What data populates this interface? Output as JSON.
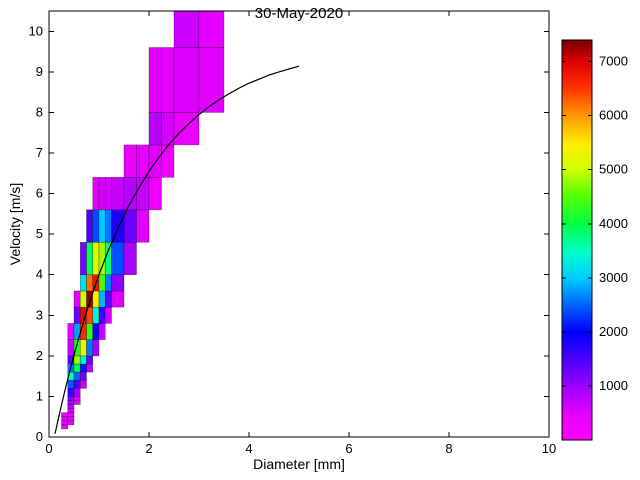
{
  "chart_data": {
    "type": "heatmap",
    "title": "30-May-2020",
    "xlabel": "Diameter [mm]",
    "ylabel": "Velocity [m/s]",
    "xlim": [
      0,
      10
    ],
    "ylim": [
      0,
      10.5
    ],
    "xticks": [
      0,
      2,
      4,
      6,
      8,
      10
    ],
    "yticks": [
      0,
      1,
      2,
      3,
      4,
      5,
      6,
      7,
      8,
      9,
      10
    ],
    "grid": false,
    "legend": "none",
    "colorbar": {
      "min": 0,
      "max": 7400,
      "ticks": [
        1000,
        2000,
        3000,
        4000,
        5000,
        6000,
        7000
      ]
    },
    "colormap": [
      [
        0.0,
        "#ff00ff"
      ],
      [
        0.07,
        "#e000ff"
      ],
      [
        0.135,
        "#9b00ff"
      ],
      [
        0.2,
        "#4d00ff"
      ],
      [
        0.27,
        "#0000ff"
      ],
      [
        0.34,
        "#0066ff"
      ],
      [
        0.405,
        "#00ccff"
      ],
      [
        0.47,
        "#00ffcc"
      ],
      [
        0.54,
        "#00ff44"
      ],
      [
        0.61,
        "#55ff00"
      ],
      [
        0.675,
        "#ccff00"
      ],
      [
        0.74,
        "#ffee00"
      ],
      [
        0.81,
        "#ff9900"
      ],
      [
        0.88,
        "#ff3300"
      ],
      [
        0.945,
        "#dd0000"
      ],
      [
        1.0,
        "#770000"
      ]
    ],
    "cells": [
      [
        0.25,
        0.375,
        0.2,
        0.3,
        250
      ],
      [
        0.25,
        0.375,
        0.3,
        0.4,
        420
      ],
      [
        0.25,
        0.375,
        0.4,
        0.5,
        380
      ],
      [
        0.25,
        0.375,
        0.5,
        0.6,
        260
      ],
      [
        0.375,
        0.5,
        0.3,
        0.4,
        300
      ],
      [
        0.375,
        0.5,
        0.4,
        0.5,
        380
      ],
      [
        0.375,
        0.5,
        0.5,
        0.6,
        480
      ],
      [
        0.375,
        0.5,
        0.6,
        0.7,
        620
      ],
      [
        0.375,
        0.5,
        0.7,
        0.8,
        780
      ],
      [
        0.375,
        0.5,
        0.8,
        0.9,
        950
      ],
      [
        0.375,
        0.5,
        0.9,
        1.0,
        1150
      ],
      [
        0.375,
        0.5,
        1.0,
        1.2,
        1650
      ],
      [
        0.375,
        0.5,
        1.2,
        1.4,
        2450
      ],
      [
        0.375,
        0.5,
        1.4,
        1.6,
        3600
      ],
      [
        0.375,
        0.5,
        1.6,
        1.8,
        2600
      ],
      [
        0.375,
        0.5,
        1.8,
        2.0,
        1400
      ],
      [
        0.375,
        0.5,
        2.0,
        2.4,
        700
      ],
      [
        0.375,
        0.5,
        2.4,
        2.8,
        350
      ],
      [
        0.5,
        0.625,
        0.8,
        0.9,
        350
      ],
      [
        0.5,
        0.625,
        0.9,
        1.0,
        550
      ],
      [
        0.5,
        0.625,
        1.0,
        1.2,
        900
      ],
      [
        0.5,
        0.625,
        1.2,
        1.4,
        1550
      ],
      [
        0.5,
        0.625,
        1.4,
        1.6,
        2500
      ],
      [
        0.5,
        0.625,
        1.6,
        1.8,
        3900
      ],
      [
        0.5,
        0.625,
        1.8,
        2.0,
        4800
      ],
      [
        0.5,
        0.625,
        2.0,
        2.4,
        4200
      ],
      [
        0.5,
        0.625,
        2.4,
        2.8,
        2800
      ],
      [
        0.5,
        0.625,
        2.8,
        3.2,
        1300
      ],
      [
        0.5,
        0.625,
        3.2,
        3.6,
        500
      ],
      [
        0.625,
        0.75,
        1.2,
        1.4,
        650
      ],
      [
        0.625,
        0.75,
        1.4,
        1.6,
        1200
      ],
      [
        0.625,
        0.75,
        1.6,
        1.8,
        2100
      ],
      [
        0.625,
        0.75,
        1.8,
        2.0,
        3400
      ],
      [
        0.625,
        0.75,
        2.0,
        2.4,
        5200
      ],
      [
        0.625,
        0.75,
        2.4,
        2.8,
        6600
      ],
      [
        0.625,
        0.75,
        2.8,
        3.2,
        6900
      ],
      [
        0.625,
        0.75,
        3.2,
        3.6,
        5000
      ],
      [
        0.625,
        0.75,
        3.6,
        4.0,
        3200
      ],
      [
        0.625,
        0.75,
        4.0,
        4.8,
        1200
      ],
      [
        0.75,
        0.875,
        1.6,
        1.8,
        700
      ],
      [
        0.75,
        0.875,
        1.8,
        2.0,
        1300
      ],
      [
        0.75,
        0.875,
        2.0,
        2.4,
        2600
      ],
      [
        0.75,
        0.875,
        2.4,
        2.8,
        4300
      ],
      [
        0.75,
        0.875,
        2.8,
        3.2,
        6400
      ],
      [
        0.75,
        0.875,
        3.2,
        3.6,
        7300
      ],
      [
        0.75,
        0.875,
        3.6,
        4.0,
        6200
      ],
      [
        0.75,
        0.875,
        4.0,
        4.8,
        3900
      ],
      [
        0.75,
        0.875,
        4.8,
        5.6,
        1500
      ],
      [
        0.875,
        1.0,
        2.0,
        2.4,
        900
      ],
      [
        0.875,
        1.0,
        2.4,
        2.8,
        1900
      ],
      [
        0.875,
        1.0,
        2.8,
        3.2,
        3400
      ],
      [
        0.875,
        1.0,
        3.2,
        3.6,
        5400
      ],
      [
        0.875,
        1.0,
        3.6,
        4.0,
        6800
      ],
      [
        0.875,
        1.0,
        4.0,
        4.8,
        5200
      ],
      [
        0.875,
        1.0,
        4.8,
        5.6,
        2400
      ],
      [
        0.875,
        1.0,
        5.6,
        6.4,
        350
      ],
      [
        1.0,
        1.125,
        2.4,
        2.8,
        700
      ],
      [
        1.0,
        1.125,
        2.8,
        3.2,
        1600
      ],
      [
        1.0,
        1.125,
        3.2,
        3.6,
        2900
      ],
      [
        1.0,
        1.125,
        3.6,
        4.0,
        4400
      ],
      [
        1.0,
        1.125,
        4.0,
        4.8,
        4800
      ],
      [
        1.0,
        1.125,
        4.8,
        5.6,
        3000
      ],
      [
        1.0,
        1.125,
        5.6,
        6.4,
        600
      ],
      [
        1.125,
        1.25,
        2.8,
        3.2,
        600
      ],
      [
        1.125,
        1.25,
        3.2,
        3.6,
        1400
      ],
      [
        1.125,
        1.25,
        3.6,
        4.0,
        2600
      ],
      [
        1.125,
        1.25,
        4.0,
        4.8,
        3800
      ],
      [
        1.125,
        1.25,
        4.8,
        5.6,
        2600
      ],
      [
        1.125,
        1.25,
        5.6,
        6.4,
        600
      ],
      [
        1.25,
        1.5,
        3.2,
        3.6,
        500
      ],
      [
        1.25,
        1.5,
        3.6,
        4.0,
        1100
      ],
      [
        1.25,
        1.5,
        4.0,
        4.8,
        2400
      ],
      [
        1.25,
        1.5,
        4.8,
        5.6,
        1800
      ],
      [
        1.25,
        1.5,
        5.6,
        6.4,
        700
      ],
      [
        1.5,
        1.75,
        4.0,
        4.8,
        900
      ],
      [
        1.5,
        1.75,
        4.8,
        5.6,
        1300
      ],
      [
        1.5,
        1.75,
        5.6,
        6.4,
        800
      ],
      [
        1.5,
        1.75,
        6.4,
        7.2,
        350
      ],
      [
        1.75,
        2.0,
        4.8,
        5.6,
        500
      ],
      [
        1.75,
        2.0,
        5.6,
        6.4,
        700
      ],
      [
        1.75,
        2.0,
        6.4,
        7.2,
        400
      ],
      [
        2.0,
        2.25,
        5.6,
        6.4,
        300
      ],
      [
        2.0,
        2.25,
        6.4,
        7.2,
        500
      ],
      [
        2.0,
        2.25,
        7.2,
        8.0,
        800
      ],
      [
        2.0,
        2.25,
        8.0,
        9.6,
        500
      ],
      [
        2.25,
        2.5,
        6.4,
        7.2,
        300
      ],
      [
        2.25,
        2.5,
        7.2,
        8.0,
        600
      ],
      [
        2.25,
        2.5,
        8.0,
        9.6,
        450
      ],
      [
        2.5,
        3.0,
        7.2,
        8.0,
        350
      ],
      [
        2.5,
        3.0,
        8.0,
        9.6,
        550
      ],
      [
        2.5,
        3.0,
        9.6,
        10.5,
        650
      ],
      [
        3.0,
        3.5,
        8.0,
        9.6,
        450
      ],
      [
        3.0,
        3.5,
        9.6,
        10.5,
        400
      ]
    ],
    "curve": {
      "name": "terminal-velocity-fit",
      "color": "#000000",
      "points": [
        [
          0.12,
          0.08
        ],
        [
          0.2,
          0.52
        ],
        [
          0.3,
          1.05
        ],
        [
          0.4,
          1.55
        ],
        [
          0.5,
          2.02
        ],
        [
          0.6,
          2.46
        ],
        [
          0.7,
          2.88
        ],
        [
          0.8,
          3.28
        ],
        [
          0.9,
          3.65
        ],
        [
          1.0,
          4.0
        ],
        [
          1.2,
          4.64
        ],
        [
          1.4,
          5.2
        ],
        [
          1.6,
          5.71
        ],
        [
          1.8,
          6.15
        ],
        [
          2.0,
          6.55
        ],
        [
          2.2,
          6.9
        ],
        [
          2.4,
          7.21
        ],
        [
          2.6,
          7.49
        ],
        [
          2.8,
          7.73
        ],
        [
          3.0,
          7.95
        ],
        [
          3.2,
          8.14
        ],
        [
          3.4,
          8.31
        ],
        [
          3.6,
          8.46
        ],
        [
          3.8,
          8.6
        ],
        [
          4.0,
          8.72
        ],
        [
          4.2,
          8.82
        ],
        [
          4.4,
          8.92
        ],
        [
          4.6,
          9.0
        ],
        [
          4.8,
          9.07
        ],
        [
          5.0,
          9.14
        ]
      ]
    }
  }
}
